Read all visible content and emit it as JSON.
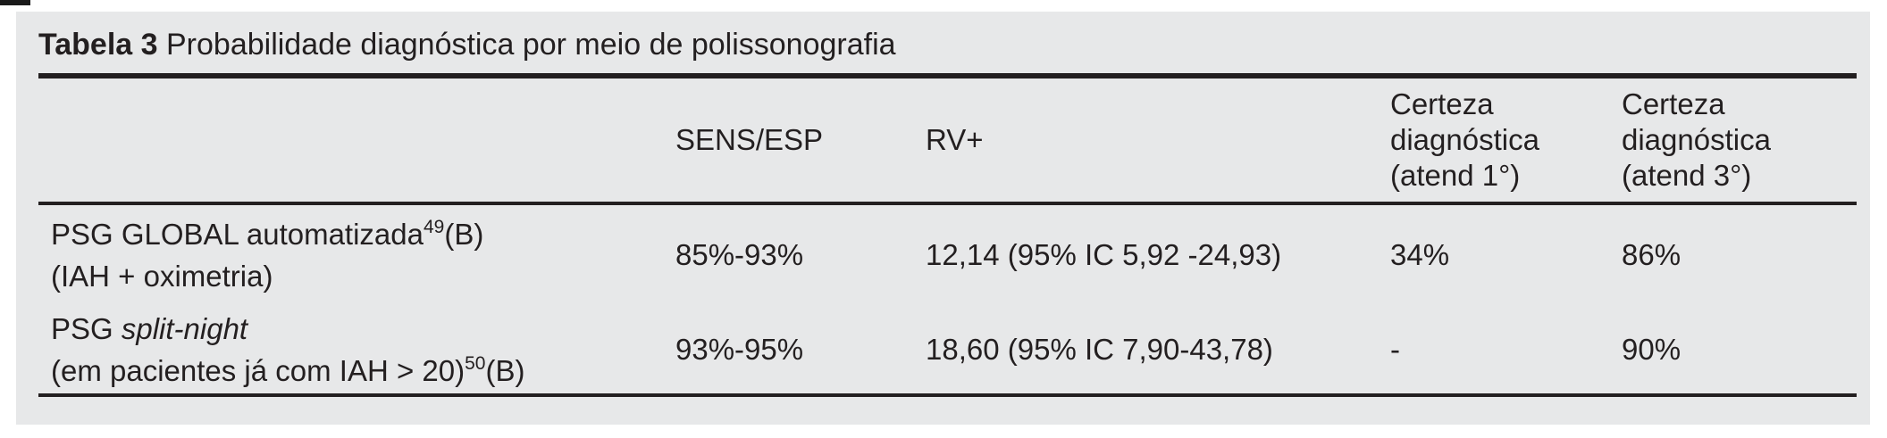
{
  "table": {
    "number": "Tabela 3",
    "caption": "Probabilidade diagnóstica por meio de polissonografia",
    "headers": {
      "row_label": "",
      "sens_esp": "SENS/ESP",
      "rv_plus": "RV+",
      "certeza_atend_1": "Certeza\ndiagnóstica\n(atend 1°)",
      "certeza_atend_3": "Certeza\ndiagnóstica\n(atend 3°)"
    },
    "rows": [
      {
        "label": "PSG GLOBAL automatizada",
        "label_ref": "49",
        "label_grade": "(B)",
        "label_sub": "(IAH + oximetria)",
        "sens_esp": "85%-93%",
        "rv_plus": "12,14 (95% IC 5,92 -24,93)",
        "certeza_atend_1": "34%",
        "certeza_atend_3": "86%"
      },
      {
        "label_prefix": "PSG ",
        "label_italic": "split-night",
        "label_sub": "(em pacientes já com IAH > 20)",
        "sub_ref": "50",
        "sub_grade": "(B)",
        "sens_esp": "93%-95%",
        "rv_plus": "18,60 (95% IC 7,90-43,78)",
        "certeza_atend_1": "-",
        "certeza_atend_3": "90%"
      }
    ]
  },
  "colors": {
    "panel_background": "#e7e8e9",
    "text": "#231f20",
    "page_background": "#ffffff"
  }
}
